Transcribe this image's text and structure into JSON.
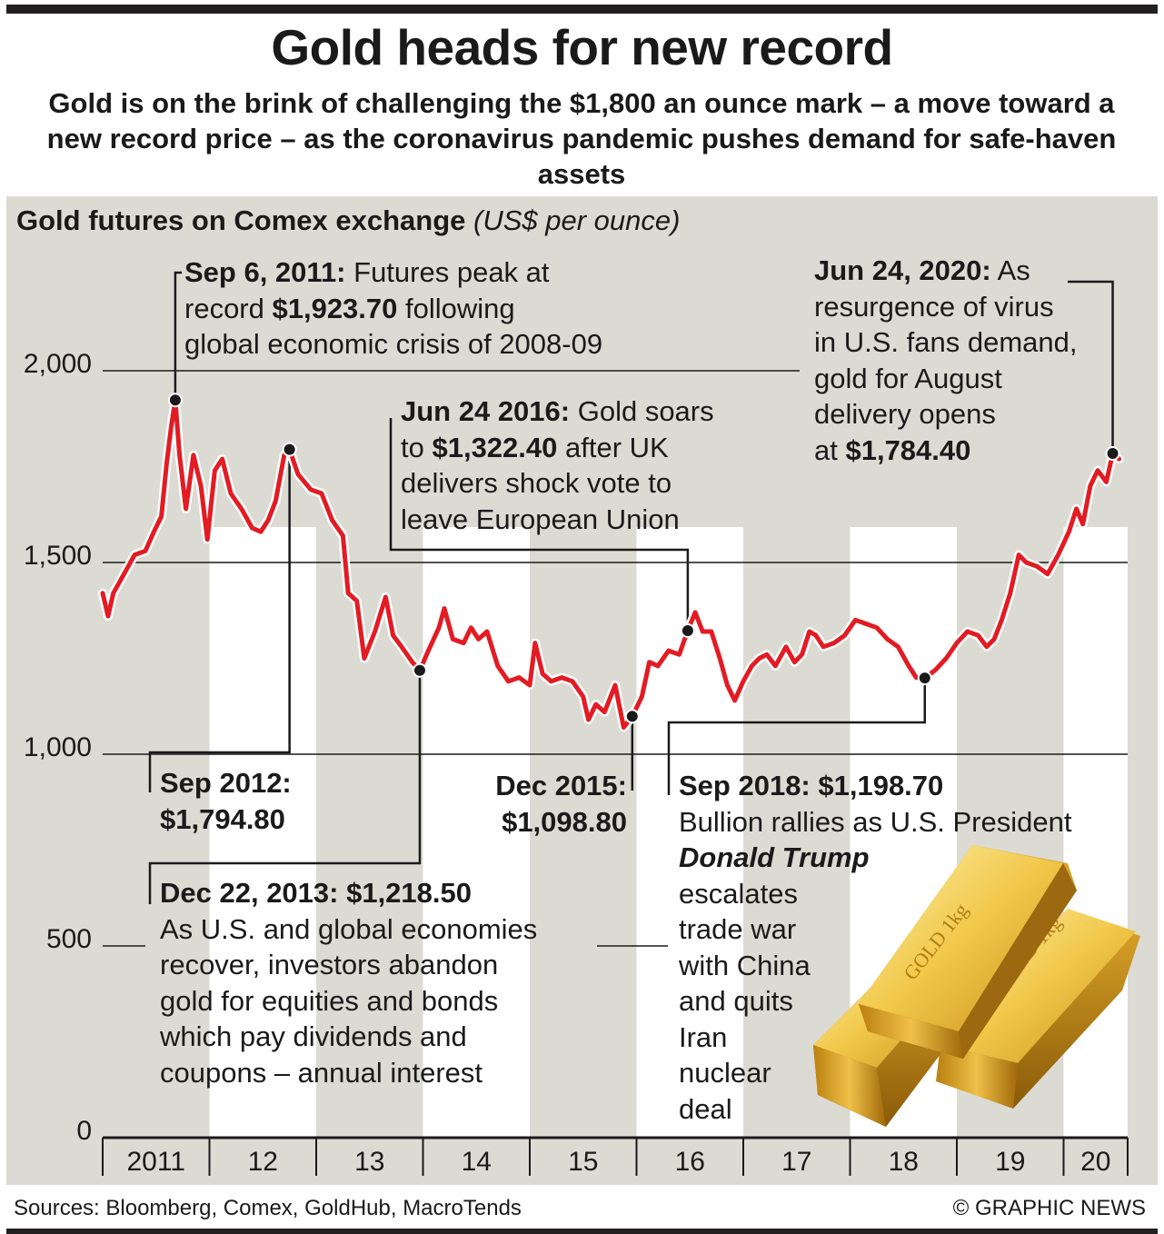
{
  "title": "Gold heads for new record",
  "subtitle": "Gold is on the brink of challenging the $1,800 an ounce mark – a move toward a new record price – as the coronavirus pandemic pushes demand for safe-haven assets",
  "chart_heading": {
    "main": "Gold futures on Comex exchange",
    "unit": "(US$ per ounce)"
  },
  "annotations": {
    "sep2011": {
      "bold": "Sep 6, 2011:",
      "text1": " Futures peak at",
      "text2a": "record ",
      "bold2": "$1,923.70",
      "text2b": " following",
      "text3": "global economic crisis of 2008-09"
    },
    "sep2012": {
      "line1": "Sep 2012:",
      "line2": "$1,794.80"
    },
    "dec2013": {
      "bold": "Dec 22, 2013: $1,218.50",
      "lines": [
        "As U.S. and global economies",
        "recover, investors abandon",
        "gold for equities and bonds",
        "which pay dividends and",
        "coupons – annual interest"
      ]
    },
    "jun2016": {
      "bold": "Jun 24 2016:",
      "text1": " Gold soars",
      "text2a": "to ",
      "bold2": "$1,322.40",
      "text2b": " after UK",
      "text3": "delivers shock vote to",
      "text4": "leave European Union"
    },
    "dec2015": {
      "line1": "Dec 2015:",
      "line2": "$1,098.80"
    },
    "sep2018": {
      "bold": "Sep 2018: $1,198.70",
      "line1": "Bullion rallies as U.S. President",
      "italic": "Donald Trump",
      "lines": [
        "escalates",
        "trade war",
        "with China",
        "and quits",
        "Iran",
        "nuclear",
        "deal"
      ]
    },
    "jun2020": {
      "bold": "Jun 24, 2020:",
      "text1": " As",
      "lines": [
        "resurgence of virus",
        "in U.S. fans demand,",
        "gold for August",
        "delivery opens"
      ],
      "last_a": "at ",
      "last_bold": "$1,784.40"
    }
  },
  "goldbar_label": "GOLD 1kg",
  "footer": {
    "sources": "Sources: Bloomberg, Comex, GoldHub, MacroTends",
    "credit": "© GRAPHIC NEWS"
  },
  "colors": {
    "line": "#e31b23",
    "panel": "#dcdbd3",
    "band": "#ffffff"
  },
  "chart_data": {
    "type": "line",
    "title": "Gold futures on Comex exchange",
    "ylabel": "(US$ per ounce)",
    "ylim": [
      0,
      2000
    ],
    "yticks": [
      {
        "value": 0,
        "label": "0"
      },
      {
        "value": 500,
        "label": "500"
      },
      {
        "value": 1000,
        "label": "1,000"
      },
      {
        "value": 1500,
        "label": "1,500"
      },
      {
        "value": 2000,
        "label": "2,000"
      }
    ],
    "x_labels": [
      "2011",
      "12",
      "13",
      "14",
      "15",
      "16",
      "17",
      "18",
      "19",
      "20"
    ],
    "x_range": [
      2011.0,
      2020.6
    ],
    "series": [
      {
        "values": [
          [
            2011.0,
            1420
          ],
          [
            2011.05,
            1360
          ],
          [
            2011.1,
            1420
          ],
          [
            2011.2,
            1470
          ],
          [
            2011.3,
            1520
          ],
          [
            2011.4,
            1530
          ],
          [
            2011.48,
            1580
          ],
          [
            2011.55,
            1620
          ],
          [
            2011.6,
            1760
          ],
          [
            2011.64,
            1850
          ],
          [
            2011.68,
            1923.7
          ],
          [
            2011.72,
            1780
          ],
          [
            2011.78,
            1640
          ],
          [
            2011.85,
            1780
          ],
          [
            2011.92,
            1700
          ],
          [
            2011.98,
            1560
          ],
          [
            2012.05,
            1740
          ],
          [
            2012.12,
            1770
          ],
          [
            2012.2,
            1680
          ],
          [
            2012.3,
            1640
          ],
          [
            2012.4,
            1590
          ],
          [
            2012.48,
            1580
          ],
          [
            2012.55,
            1610
          ],
          [
            2012.62,
            1660
          ],
          [
            2012.7,
            1780
          ],
          [
            2012.75,
            1794.8
          ],
          [
            2012.83,
            1730
          ],
          [
            2012.95,
            1690
          ],
          [
            2013.05,
            1680
          ],
          [
            2013.15,
            1610
          ],
          [
            2013.25,
            1570
          ],
          [
            2013.3,
            1420
          ],
          [
            2013.38,
            1400
          ],
          [
            2013.45,
            1250
          ],
          [
            2013.55,
            1320
          ],
          [
            2013.65,
            1410
          ],
          [
            2013.72,
            1310
          ],
          [
            2013.8,
            1280
          ],
          [
            2013.9,
            1240
          ],
          [
            2013.97,
            1218.5
          ],
          [
            2014.05,
            1270
          ],
          [
            2014.15,
            1330
          ],
          [
            2014.2,
            1380
          ],
          [
            2014.28,
            1300
          ],
          [
            2014.38,
            1290
          ],
          [
            2014.45,
            1330
          ],
          [
            2014.52,
            1300
          ],
          [
            2014.6,
            1320
          ],
          [
            2014.7,
            1230
          ],
          [
            2014.8,
            1190
          ],
          [
            2014.9,
            1200
          ],
          [
            2015.0,
            1180
          ],
          [
            2015.05,
            1290
          ],
          [
            2015.12,
            1210
          ],
          [
            2015.2,
            1190
          ],
          [
            2015.3,
            1200
          ],
          [
            2015.4,
            1190
          ],
          [
            2015.5,
            1150
          ],
          [
            2015.55,
            1090
          ],
          [
            2015.62,
            1130
          ],
          [
            2015.7,
            1110
          ],
          [
            2015.8,
            1180
          ],
          [
            2015.88,
            1070
          ],
          [
            2015.96,
            1098.8
          ],
          [
            2016.05,
            1150
          ],
          [
            2016.12,
            1240
          ],
          [
            2016.2,
            1230
          ],
          [
            2016.3,
            1270
          ],
          [
            2016.4,
            1260
          ],
          [
            2016.48,
            1322.4
          ],
          [
            2016.55,
            1370
          ],
          [
            2016.62,
            1320
          ],
          [
            2016.7,
            1320
          ],
          [
            2016.78,
            1250
          ],
          [
            2016.85,
            1180
          ],
          [
            2016.92,
            1140
          ],
          [
            2017.0,
            1190
          ],
          [
            2017.08,
            1230
          ],
          [
            2017.15,
            1250
          ],
          [
            2017.22,
            1260
          ],
          [
            2017.3,
            1230
          ],
          [
            2017.4,
            1280
          ],
          [
            2017.48,
            1240
          ],
          [
            2017.55,
            1260
          ],
          [
            2017.62,
            1320
          ],
          [
            2017.68,
            1310
          ],
          [
            2017.75,
            1280
          ],
          [
            2017.85,
            1290
          ],
          [
            2017.95,
            1310
          ],
          [
            2018.05,
            1350
          ],
          [
            2018.15,
            1340
          ],
          [
            2018.25,
            1330
          ],
          [
            2018.35,
            1300
          ],
          [
            2018.45,
            1280
          ],
          [
            2018.55,
            1230
          ],
          [
            2018.62,
            1200
          ],
          [
            2018.7,
            1198.7
          ],
          [
            2018.8,
            1220
          ],
          [
            2018.9,
            1250
          ],
          [
            2019.0,
            1290
          ],
          [
            2019.1,
            1320
          ],
          [
            2019.2,
            1310
          ],
          [
            2019.28,
            1280
          ],
          [
            2019.35,
            1300
          ],
          [
            2019.42,
            1350
          ],
          [
            2019.5,
            1420
          ],
          [
            2019.58,
            1520
          ],
          [
            2019.65,
            1500
          ],
          [
            2019.75,
            1490
          ],
          [
            2019.85,
            1470
          ],
          [
            2019.95,
            1520
          ],
          [
            2020.05,
            1580
          ],
          [
            2020.12,
            1640
          ],
          [
            2020.18,
            1600
          ],
          [
            2020.25,
            1700
          ],
          [
            2020.32,
            1740
          ],
          [
            2020.4,
            1710
          ],
          [
            2020.46,
            1784.4
          ],
          [
            2020.52,
            1770
          ]
        ]
      }
    ],
    "highlights": [
      {
        "x": 2011.68,
        "y": 1923.7,
        "label": "Sep 6, 2011"
      },
      {
        "x": 2012.75,
        "y": 1794.8,
        "label": "Sep 2012"
      },
      {
        "x": 2013.97,
        "y": 1218.5,
        "label": "Dec 22, 2013"
      },
      {
        "x": 2015.96,
        "y": 1098.8,
        "label": "Dec 2015"
      },
      {
        "x": 2016.48,
        "y": 1322.4,
        "label": "Jun 24 2016"
      },
      {
        "x": 2018.7,
        "y": 1198.7,
        "label": "Sep 2018"
      },
      {
        "x": 2020.46,
        "y": 1784.4,
        "label": "Jun 24, 2020"
      }
    ]
  }
}
